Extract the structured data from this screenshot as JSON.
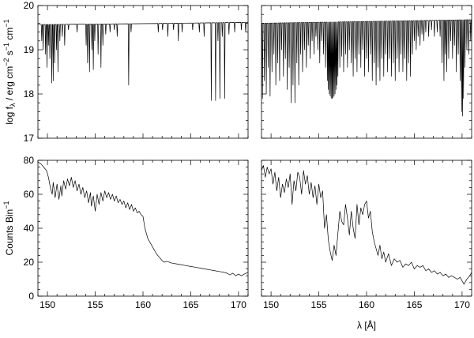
{
  "chart_data": [
    {
      "type": "line",
      "panel": "top-left",
      "ylabel": "log f_λ / erg cm^-2 s^-1 cm^-1",
      "ylabel_parts": {
        "a": "log f",
        "sub": "λ",
        "b": " / erg cm",
        "e1": "−2",
        "c": " s",
        "e2": "−1",
        "d": " cm",
        "e3": "−1"
      },
      "xlim": [
        149,
        171
      ],
      "ylim": [
        17,
        20
      ],
      "yticks": [
        17,
        18,
        19,
        20
      ],
      "yticks_labels": [
        "17",
        "18",
        "19",
        "20"
      ],
      "continuum": [
        [
          149,
          19.57
        ],
        [
          160,
          19.59
        ],
        [
          171,
          19.62
        ]
      ],
      "lines": [
        [
          149.4,
          19.2
        ],
        [
          149.55,
          19.0
        ],
        [
          149.8,
          18.9
        ],
        [
          149.95,
          18.6
        ],
        [
          150.1,
          19.1
        ],
        [
          150.25,
          18.8
        ],
        [
          150.45,
          18.25
        ],
        [
          150.6,
          18.3
        ],
        [
          150.75,
          18.7
        ],
        [
          150.95,
          19.0
        ],
        [
          151.1,
          18.5
        ],
        [
          151.3,
          19.2
        ],
        [
          151.55,
          19.3
        ],
        [
          151.8,
          19.1
        ],
        [
          152.2,
          19.45
        ],
        [
          153.1,
          19.4
        ],
        [
          154.05,
          19.1
        ],
        [
          154.2,
          18.7
        ],
        [
          154.4,
          18.5
        ],
        [
          154.65,
          19.0
        ],
        [
          154.8,
          18.55
        ],
        [
          154.95,
          19.2
        ],
        [
          155.3,
          18.9
        ],
        [
          155.6,
          18.6
        ],
        [
          155.8,
          19.1
        ],
        [
          156.1,
          19.35
        ],
        [
          156.55,
          19.4
        ],
        [
          157.0,
          19.45
        ],
        [
          157.3,
          19.3
        ],
        [
          158.5,
          18.2
        ],
        [
          158.75,
          19.4
        ],
        [
          161.6,
          19.4
        ],
        [
          162.05,
          19.45
        ],
        [
          162.6,
          19.3
        ],
        [
          163.2,
          19.45
        ],
        [
          163.7,
          19.2
        ],
        [
          164.1,
          19.4
        ],
        [
          165.2,
          19.45
        ],
        [
          165.9,
          19.4
        ],
        [
          166.4,
          19.3
        ],
        [
          167.15,
          17.85
        ],
        [
          167.6,
          17.85
        ],
        [
          167.85,
          19.2
        ],
        [
          168.05,
          17.9
        ],
        [
          168.3,
          19.3
        ],
        [
          168.55,
          17.9
        ],
        [
          169.0,
          19.35
        ],
        [
          169.6,
          19.4
        ],
        [
          170.3,
          19.45
        ],
        [
          170.75,
          19.4
        ]
      ]
    },
    {
      "type": "line",
      "panel": "top-right",
      "xlim": [
        149,
        171
      ],
      "ylim": [
        17,
        20
      ],
      "continuum": [
        [
          149,
          19.6
        ],
        [
          160,
          19.64
        ],
        [
          171,
          19.68
        ]
      ],
      "lines": [
        [
          149.1,
          17.9
        ],
        [
          149.3,
          18.3
        ],
        [
          149.5,
          18.0
        ],
        [
          149.7,
          18.6
        ],
        [
          149.9,
          17.95
        ],
        [
          150.1,
          18.5
        ],
        [
          150.3,
          18.9
        ],
        [
          150.5,
          18.2
        ],
        [
          150.7,
          18.7
        ],
        [
          150.9,
          18.3
        ],
        [
          151.1,
          19.0
        ],
        [
          151.3,
          18.4
        ],
        [
          151.5,
          18.8
        ],
        [
          151.7,
          18.1
        ],
        [
          151.9,
          18.6
        ],
        [
          152.1,
          17.8
        ],
        [
          152.3,
          18.2
        ],
        [
          152.5,
          17.8
        ],
        [
          152.7,
          18.7
        ],
        [
          152.9,
          18.2
        ],
        [
          153.1,
          18.9
        ],
        [
          153.3,
          18.5
        ],
        [
          153.5,
          19.0
        ],
        [
          153.7,
          18.6
        ],
        [
          153.9,
          19.1
        ],
        [
          154.1,
          18.8
        ],
        [
          154.3,
          19.2
        ],
        [
          154.5,
          18.9
        ],
        [
          154.7,
          19.3
        ],
        [
          154.9,
          19.0
        ],
        [
          155.1,
          18.7
        ],
        [
          155.3,
          19.2
        ],
        [
          155.5,
          18.9
        ],
        [
          155.7,
          18.6
        ],
        [
          155.9,
          18.3
        ],
        [
          156.0,
          18.1
        ],
        [
          156.1,
          18.0
        ],
        [
          156.2,
          17.95
        ],
        [
          156.3,
          17.9
        ],
        [
          156.4,
          17.9
        ],
        [
          156.5,
          17.92
        ],
        [
          156.6,
          17.95
        ],
        [
          156.7,
          18.0
        ],
        [
          156.8,
          18.1
        ],
        [
          156.9,
          18.2
        ],
        [
          157.0,
          18.4
        ],
        [
          157.2,
          18.6
        ],
        [
          157.4,
          18.85
        ],
        [
          157.6,
          18.5
        ],
        [
          157.8,
          18.9
        ],
        [
          158.0,
          18.6
        ],
        [
          158.2,
          19.0
        ],
        [
          158.4,
          18.7
        ],
        [
          158.6,
          18.4
        ],
        [
          158.8,
          18.8
        ],
        [
          159.0,
          18.5
        ],
        [
          159.2,
          18.9
        ],
        [
          159.4,
          18.6
        ],
        [
          159.6,
          19.0
        ],
        [
          159.8,
          18.4
        ],
        [
          160.0,
          18.8
        ],
        [
          160.2,
          18.5
        ],
        [
          160.4,
          18.9
        ],
        [
          160.6,
          18.3
        ],
        [
          160.8,
          18.7
        ],
        [
          161.0,
          18.2
        ],
        [
          161.2,
          18.6
        ],
        [
          161.4,
          18.3
        ],
        [
          161.6,
          18.8
        ],
        [
          161.8,
          18.4
        ],
        [
          162.0,
          18.9
        ],
        [
          162.2,
          18.5
        ],
        [
          162.4,
          18.8
        ],
        [
          162.6,
          18.4
        ],
        [
          162.8,
          18.7
        ],
        [
          163.0,
          18.3
        ],
        [
          163.2,
          18.8
        ],
        [
          163.4,
          18.5
        ],
        [
          163.6,
          18.9
        ],
        [
          163.8,
          18.5
        ],
        [
          164.0,
          18.8
        ],
        [
          164.2,
          18.3
        ],
        [
          164.4,
          18.7
        ],
        [
          164.6,
          18.4
        ],
        [
          164.8,
          18.9
        ],
        [
          165.0,
          19.2
        ],
        [
          165.2,
          19.0
        ],
        [
          165.4,
          19.3
        ],
        [
          165.6,
          19.1
        ],
        [
          165.8,
          19.35
        ],
        [
          166.0,
          19.2
        ],
        [
          166.2,
          19.4
        ],
        [
          166.5,
          19.3
        ],
        [
          166.8,
          19.45
        ],
        [
          167.1,
          19.3
        ],
        [
          167.4,
          19.4
        ],
        [
          167.7,
          19.3
        ],
        [
          167.9,
          18.7
        ],
        [
          168.1,
          18.3
        ],
        [
          168.25,
          18.9
        ],
        [
          168.4,
          18.5
        ],
        [
          168.6,
          18.8
        ],
        [
          168.8,
          19.2
        ],
        [
          169.0,
          18.8
        ],
        [
          169.2,
          19.1
        ],
        [
          169.4,
          18.5
        ],
        [
          169.6,
          18.9
        ],
        [
          169.8,
          18.3
        ],
        [
          169.95,
          17.6
        ],
        [
          170.05,
          17.5
        ],
        [
          170.15,
          17.9
        ],
        [
          170.3,
          18.6
        ],
        [
          170.5,
          19.0
        ],
        [
          170.7,
          18.9
        ],
        [
          170.9,
          19.2
        ]
      ]
    },
    {
      "type": "line",
      "panel": "bottom-left",
      "ylabel": "Counts Bin^-1",
      "ylabel_parts": {
        "a": "Counts Bin",
        "e1": "−1"
      },
      "xlim": [
        149,
        171
      ],
      "ylim": [
        0,
        80
      ],
      "xticks": [
        150,
        155,
        160,
        165,
        170
      ],
      "xticks_labels": [
        "150",
        "155",
        "160",
        "165",
        "170"
      ],
      "yticks": [
        0,
        20,
        40,
        60,
        80
      ],
      "yticks_labels": [
        "0",
        "20",
        "40",
        "60",
        "80"
      ],
      "x": [
        149.0,
        149.3,
        149.6,
        149.9,
        150.1,
        150.3,
        150.5,
        150.6,
        150.8,
        151.0,
        151.2,
        151.4,
        151.5,
        151.7,
        151.9,
        152.1,
        152.3,
        152.5,
        152.7,
        152.9,
        153.1,
        153.3,
        153.5,
        153.7,
        153.9,
        154.1,
        154.3,
        154.5,
        154.6,
        154.8,
        155.0,
        155.2,
        155.4,
        155.6,
        155.8,
        156.0,
        156.2,
        156.4,
        156.6,
        156.8,
        157.0,
        157.2,
        157.4,
        157.6,
        157.8,
        158.0,
        158.2,
        158.4,
        158.6,
        158.8,
        159.0,
        159.2,
        159.4,
        159.6,
        159.8,
        160.0,
        160.2,
        160.5,
        160.8,
        161.1,
        161.4,
        161.7,
        162.0,
        162.2,
        162.5,
        163.0,
        163.5,
        164.0,
        164.5,
        165.0,
        165.5,
        166.0,
        166.5,
        167.0,
        167.5,
        168.0,
        168.5,
        168.8,
        169.1,
        169.4,
        169.7,
        170.0,
        170.3,
        170.6,
        171.0
      ],
      "y": [
        79,
        78,
        76,
        74,
        70,
        64,
        60,
        67,
        58,
        66,
        57,
        65,
        59,
        68,
        63,
        69,
        65,
        70,
        64,
        68,
        62,
        66,
        60,
        64,
        58,
        62,
        55,
        61,
        53,
        59,
        50,
        60,
        54,
        61,
        56,
        62,
        58,
        61,
        57,
        60,
        56,
        59,
        55,
        57,
        54,
        56,
        52,
        55,
        51,
        54,
        50,
        52,
        49,
        50,
        48,
        47,
        40,
        34,
        31,
        28,
        25,
        23,
        21,
        20,
        20.5,
        19.5,
        19,
        18.5,
        18,
        17.5,
        17,
        16.5,
        16,
        15.5,
        15,
        14.5,
        14,
        13.5,
        12.5,
        13.5,
        12,
        13,
        12,
        13,
        14
      ]
    },
    {
      "type": "line",
      "panel": "bottom-right",
      "xlabel": "λ [Å]",
      "xlim": [
        149,
        171
      ],
      "ylim": [
        0,
        80
      ],
      "xticks": [
        150,
        155,
        160,
        165,
        170
      ],
      "xticks_labels": [
        "150",
        "155",
        "160",
        "165",
        "170"
      ],
      "x": [
        149.0,
        149.2,
        149.4,
        149.6,
        149.8,
        150.0,
        150.2,
        150.4,
        150.6,
        150.8,
        151.0,
        151.2,
        151.4,
        151.6,
        151.8,
        152.0,
        152.2,
        152.4,
        152.6,
        152.8,
        153.0,
        153.2,
        153.4,
        153.6,
        153.8,
        154.0,
        154.2,
        154.4,
        154.6,
        154.8,
        155.0,
        155.2,
        155.4,
        155.6,
        155.8,
        156.0,
        156.2,
        156.4,
        156.6,
        156.8,
        157.0,
        157.2,
        157.4,
        157.6,
        157.8,
        158.0,
        158.2,
        158.4,
        158.6,
        158.8,
        159.0,
        159.2,
        159.4,
        159.6,
        159.8,
        160.0,
        160.2,
        160.4,
        160.6,
        160.8,
        161.0,
        161.2,
        161.4,
        161.6,
        161.8,
        162.0,
        162.3,
        162.6,
        162.9,
        163.2,
        163.5,
        163.8,
        164.1,
        164.4,
        164.7,
        165.0,
        165.3,
        165.6,
        165.9,
        166.2,
        166.5,
        166.8,
        167.1,
        167.4,
        167.7,
        168.0,
        168.3,
        168.6,
        168.9,
        169.2,
        169.5,
        169.8,
        170.0,
        170.2,
        170.5,
        170.8,
        171.0
      ],
      "y": [
        74,
        77,
        70,
        76,
        72,
        75,
        66,
        73,
        62,
        70,
        58,
        66,
        61,
        69,
        64,
        72,
        54,
        68,
        62,
        73,
        70,
        60,
        74,
        66,
        71,
        60,
        67,
        58,
        65,
        54,
        66,
        58,
        62,
        40,
        48,
        33,
        26,
        21,
        30,
        24,
        37,
        50,
        44,
        42,
        54,
        46,
        36,
        50,
        40,
        34,
        54,
        42,
        52,
        48,
        54,
        56,
        46,
        50,
        38,
        32,
        28,
        24,
        30,
        22,
        26,
        20,
        25,
        18,
        22,
        20,
        21,
        17,
        19,
        18,
        20,
        16,
        18,
        17,
        18,
        15,
        16,
        14,
        15,
        13,
        14,
        12,
        13,
        11,
        12,
        11,
        10,
        11,
        9,
        7,
        10,
        12,
        14
      ]
    }
  ]
}
